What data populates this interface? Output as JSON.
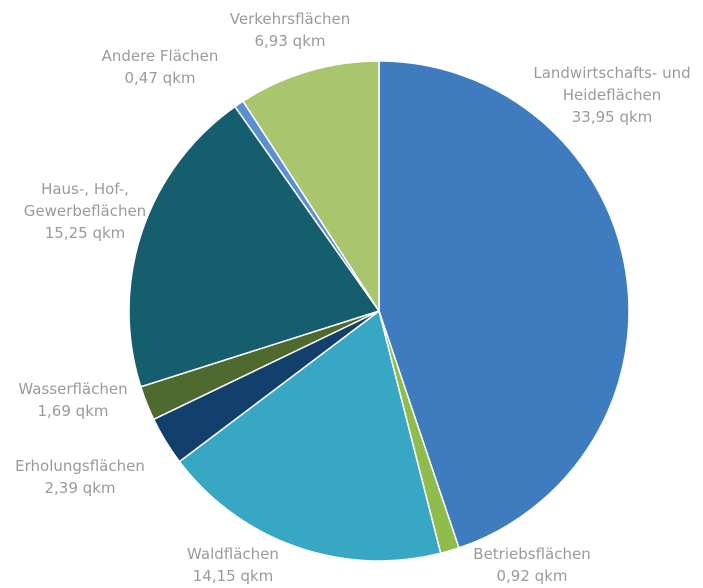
{
  "chart_data": {
    "type": "pie",
    "categories": [
      "Landwirtschafts- und Heideflächen",
      "Betriebsflächen",
      "Waldflächen",
      "Erholungsflächen",
      "Wasserflächen",
      "Haus-, Hof-, Gewerbeflächen",
      "Andere Flächen",
      "Verkehrsflächen"
    ],
    "values": [
      33.95,
      0.92,
      14.15,
      2.39,
      1.69,
      15.25,
      0.47,
      6.93
    ],
    "value_labels": [
      "33,95 qkm",
      "0,92 qkm",
      "14,15 qkm",
      "2,39 qkm",
      "1,69 qkm",
      "15,25 qkm",
      "0,47 qkm",
      "6,93 qkm"
    ],
    "colors": [
      "#3f7cbf",
      "#8fbc4a",
      "#38a7c4",
      "#123f6b",
      "#4e6a2e",
      "#145e6e",
      "#5b8fd0",
      "#a9c56e"
    ]
  }
}
